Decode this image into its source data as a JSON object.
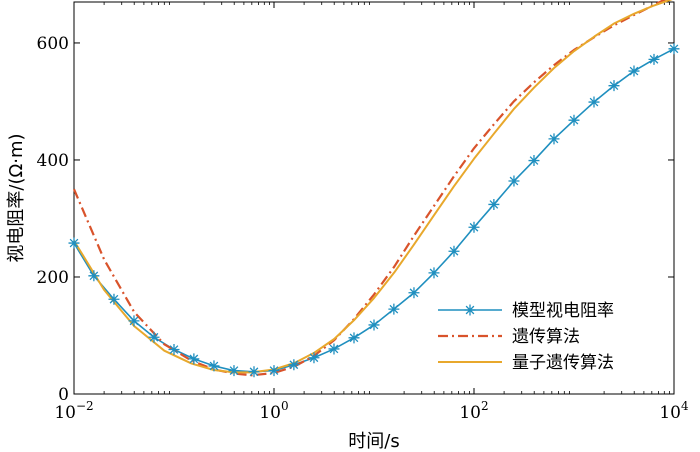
{
  "chart_data": {
    "type": "line",
    "x_scale": "log",
    "xlabel": "时间/s",
    "ylabel": "视电阻率/(Ω·m)",
    "xlim": [
      0.01,
      10000
    ],
    "ylim": [
      0,
      670
    ],
    "x_ticks": [
      {
        "value": 0.01,
        "base": "10",
        "exp": "−2"
      },
      {
        "value": 1,
        "base": "10",
        "exp": "0"
      },
      {
        "value": 100,
        "base": "10",
        "exp": "2"
      },
      {
        "value": 10000,
        "base": "10",
        "exp": "4"
      }
    ],
    "y_ticks": [
      {
        "value": 0,
        "label": "0"
      },
      {
        "value": 200,
        "label": "200"
      },
      {
        "value": 400,
        "label": "400"
      },
      {
        "value": 600,
        "label": "600"
      }
    ],
    "legend": {
      "position": "bottom-right",
      "entries": [
        {
          "label": "模型视电阻率",
          "style": "line-star",
          "color": "#1f8fbf"
        },
        {
          "label": "遗传算法",
          "style": "dash-dot",
          "color": "#d9532b"
        },
        {
          "label": "量子遗传算法",
          "style": "solid",
          "color": "#e8a82c"
        }
      ]
    },
    "series": [
      {
        "name": "模型视电阻率",
        "color": "#1f8fbf",
        "x": [
          0.01,
          0.0158,
          0.0251,
          0.0398,
          0.0631,
          0.1,
          0.158,
          0.251,
          0.398,
          0.631,
          1.0,
          1.58,
          2.51,
          3.98,
          6.31,
          10.0,
          15.8,
          25.1,
          39.8,
          63.1,
          100,
          158,
          251,
          398,
          631,
          1000,
          1585,
          2512,
          3981,
          6310,
          10000
        ],
        "y": [
          258,
          202,
          162,
          125,
          97,
          76,
          60,
          48,
          40,
          38,
          40,
          50,
          62,
          77,
          96,
          118,
          145,
          173,
          207,
          244,
          285,
          324,
          364,
          399,
          436,
          468,
          499,
          527,
          552,
          572,
          590
        ]
      },
      {
        "name": "遗传算法",
        "color": "#d9532b",
        "x": [
          0.01,
          0.02,
          0.04,
          0.08,
          0.15,
          0.25,
          0.4,
          0.6,
          1.0,
          1.6,
          2.5,
          4,
          6.3,
          10,
          16,
          25,
          40,
          63,
          100,
          160,
          250,
          400,
          630,
          1000,
          1600,
          2500,
          4000,
          6300,
          10000
        ],
        "y": [
          350,
          230,
          140,
          85,
          57,
          42,
          35,
          32,
          36,
          47,
          65,
          92,
          128,
          170,
          218,
          270,
          322,
          372,
          420,
          462,
          500,
          533,
          562,
          588,
          610,
          630,
          648,
          665,
          682
        ]
      },
      {
        "name": "量子遗传算法",
        "color": "#e8a82c",
        "x": [
          0.01,
          0.02,
          0.04,
          0.08,
          0.15,
          0.25,
          0.4,
          0.6,
          1.0,
          1.6,
          2.5,
          4,
          6.3,
          10,
          16,
          25,
          40,
          63,
          100,
          160,
          250,
          400,
          630,
          1000,
          1600,
          2500,
          4000,
          6300,
          10000
        ],
        "y": [
          262,
          178,
          116,
          74,
          52,
          41,
          37,
          37,
          42,
          53,
          70,
          94,
          126,
          164,
          208,
          255,
          306,
          355,
          402,
          446,
          487,
          524,
          557,
          586,
          611,
          633,
          650,
          664,
          676
        ]
      }
    ],
    "marker_series": {
      "name": "模型视电阻率",
      "x": [
        0.01,
        0.0158,
        0.0251,
        0.0398,
        0.0631,
        0.1,
        0.158,
        0.251,
        0.398,
        0.631,
        1.0,
        1.58,
        2.51,
        3.98,
        6.31,
        10.0,
        15.8,
        25.1,
        39.8,
        63.1,
        100,
        158,
        251,
        398,
        631,
        1000,
        1585,
        2512,
        3981,
        6310,
        10000
      ],
      "y": [
        258,
        202,
        162,
        125,
        97,
        76,
        60,
        48,
        40,
        38,
        40,
        50,
        62,
        77,
        96,
        118,
        145,
        173,
        207,
        244,
        285,
        324,
        364,
        399,
        436,
        468,
        499,
        527,
        552,
        572,
        590
      ]
    }
  }
}
